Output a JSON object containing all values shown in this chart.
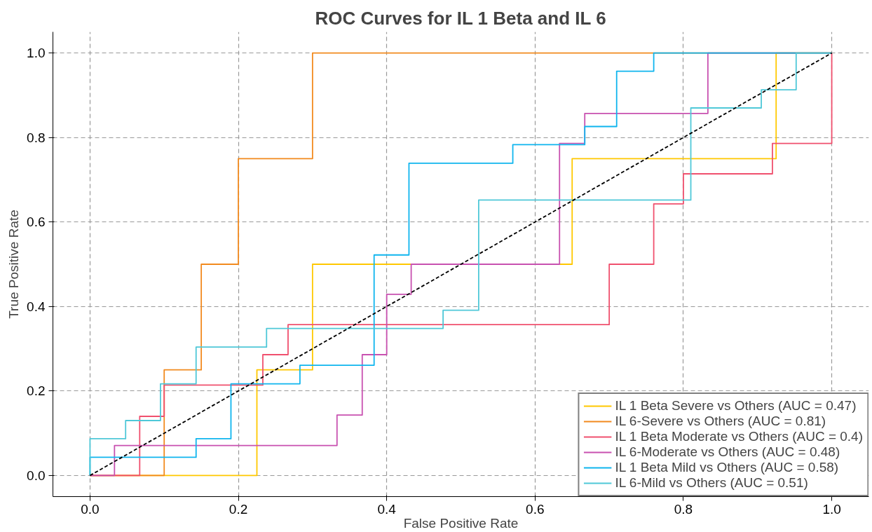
{
  "chart_data": {
    "type": "line",
    "title": "ROC Curves for IL 1 Beta and IL 6",
    "xlabel": "False Positive Rate",
    "ylabel": "True Positive Rate",
    "xlim": [
      -0.05,
      1.05
    ],
    "ylim": [
      -0.05,
      1.05
    ],
    "xticks": [
      {
        "value": 0,
        "label": "0.0"
      },
      0.2,
      0.4,
      0.6,
      0.8,
      {
        "value": 1,
        "label": "1.0"
      }
    ],
    "yticks": [
      {
        "value": 0,
        "label": "0.0"
      },
      0.2,
      0.4,
      0.6,
      0.8,
      {
        "value": 1,
        "label": "1.0"
      }
    ],
    "grid": true,
    "legend": "bottom right",
    "line_style": "solid",
    "marker": "none",
    "series": [
      {
        "name": "IL 1 Beta Severe vs Others (AUC = 0.47)",
        "color": "#ffc800",
        "x": [
          0,
          0.225,
          0.225,
          0.3,
          0.3,
          0.65,
          0.65,
          0.925,
          0.925,
          1
        ],
        "values": [
          0,
          0,
          0.25,
          0.25,
          0.5,
          0.5,
          0.75,
          0.75,
          1,
          1
        ]
      },
      {
        "name": "IL 6-Severe vs Others (AUC = 0.81)",
        "color": "#f28a1e",
        "x": [
          0,
          0.1,
          0.1,
          0.15,
          0.15,
          0.2,
          0.2,
          0.3,
          0.3,
          1
        ],
        "values": [
          0,
          0,
          0.25,
          0.25,
          0.5,
          0.5,
          0.75,
          0.75,
          1,
          1
        ]
      },
      {
        "name": "IL 1 Beta Moderate vs Others (AUC = 0.4)",
        "color": "#f0506e",
        "x": [
          0,
          0.067,
          0.067,
          0.1,
          0.1,
          0.233,
          0.233,
          0.267,
          0.267,
          0.7,
          0.7,
          0.76,
          0.76,
          0.8,
          0.8,
          0.92,
          0.92,
          1,
          1
        ],
        "values": [
          0,
          0,
          0.14,
          0.14,
          0.214,
          0.214,
          0.286,
          0.286,
          0.357,
          0.357,
          0.5,
          0.5,
          0.643,
          0.643,
          0.714,
          0.714,
          0.786,
          0.786,
          1
        ]
      },
      {
        "name": "IL 6-Moderate vs Others (AUC = 0.48)",
        "color": "#c851b0",
        "x": [
          0,
          0.033,
          0.033,
          0.333,
          0.333,
          0.367,
          0.367,
          0.4,
          0.4,
          0.433,
          0.433,
          0.633,
          0.633,
          0.667,
          0.667,
          0.833,
          0.833,
          1
        ],
        "values": [
          0,
          0,
          0.071,
          0.071,
          0.143,
          0.143,
          0.286,
          0.286,
          0.429,
          0.429,
          0.5,
          0.5,
          0.786,
          0.786,
          0.857,
          0.857,
          1,
          1
        ]
      },
      {
        "name": "IL 1 Beta Mild vs Others (AUC = 0.58)",
        "color": "#0fb5ee",
        "x": [
          0,
          0,
          0.143,
          0.143,
          0.19,
          0.19,
          0.283,
          0.283,
          0.383,
          0.383,
          0.43,
          0.43,
          0.57,
          0.57,
          0.667,
          0.667,
          0.71,
          0.71,
          0.76,
          0.76,
          1
        ],
        "values": [
          0,
          0.043,
          0.043,
          0.087,
          0.087,
          0.217,
          0.217,
          0.261,
          0.261,
          0.522,
          0.522,
          0.739,
          0.739,
          0.783,
          0.783,
          0.826,
          0.826,
          0.957,
          0.957,
          1,
          1
        ]
      },
      {
        "name": "IL 6-Mild vs Others (AUC = 0.51)",
        "color": "#4fc8d8",
        "x": [
          0,
          0,
          0.048,
          0.048,
          0.095,
          0.095,
          0.143,
          0.143,
          0.238,
          0.238,
          0.476,
          0.476,
          0.524,
          0.524,
          0.81,
          0.81,
          0.905,
          0.905,
          0.952,
          0.952,
          1
        ],
        "values": [
          0,
          0.087,
          0.087,
          0.13,
          0.13,
          0.217,
          0.217,
          0.304,
          0.304,
          0.348,
          0.348,
          0.391,
          0.391,
          0.652,
          0.652,
          0.87,
          0.87,
          0.913,
          0.913,
          1,
          1
        ]
      },
      {
        "color": "#000000",
        "line_style": "dashed",
        "x": [
          0,
          1
        ],
        "values": [
          0,
          1
        ]
      }
    ]
  }
}
